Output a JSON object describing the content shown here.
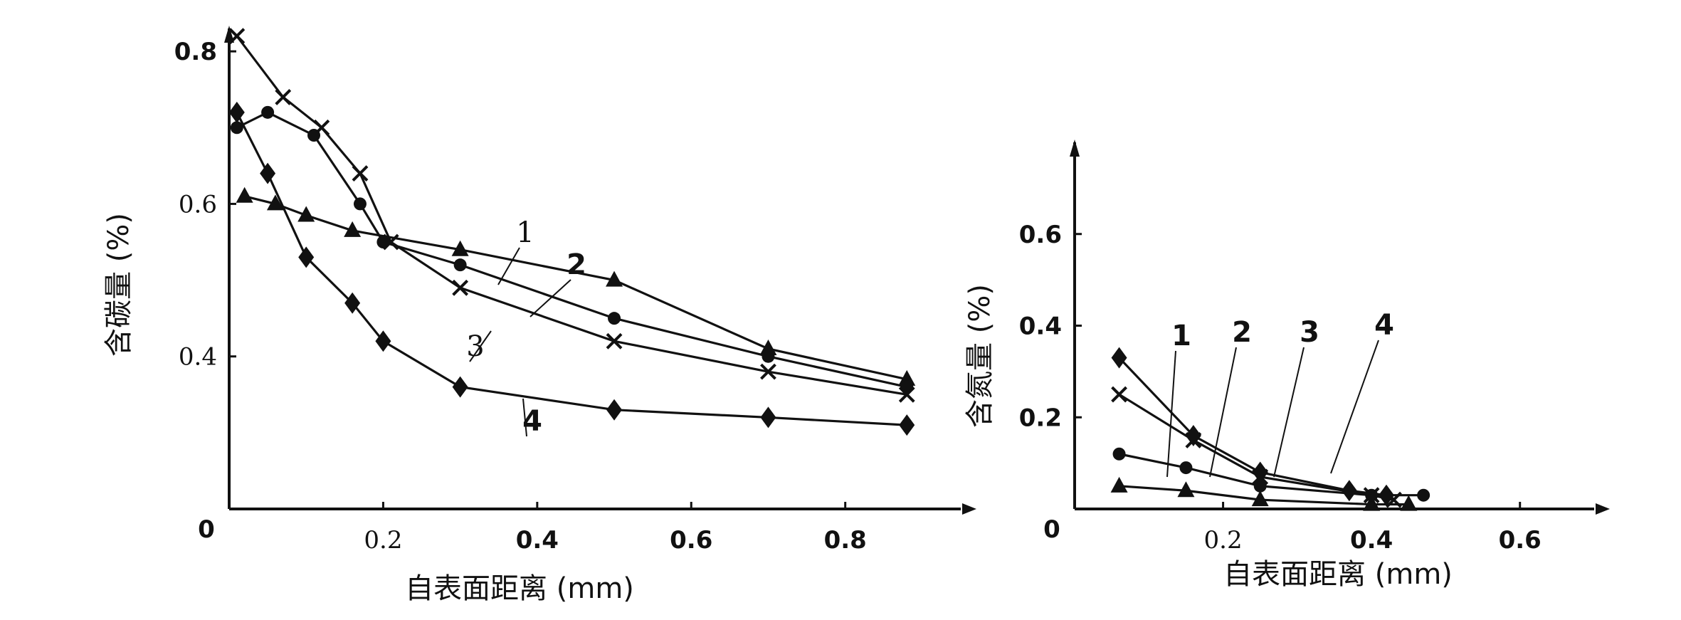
{
  "chart_data": [
    {
      "type": "line",
      "xlabel": "自表面距离 (mm)",
      "ylabel": "含碳量 (%)",
      "origin_label": "0",
      "xlim": [
        0,
        0.95
      ],
      "ylim": [
        0.2,
        0.83
      ],
      "x_ticks": [
        {
          "value": 0.2,
          "label": "0.2"
        },
        {
          "value": 0.4,
          "label": "0.4"
        },
        {
          "value": 0.6,
          "label": "0.6"
        },
        {
          "value": 0.8,
          "label": "0.8"
        }
      ],
      "y_ticks": [
        {
          "value": 0.4,
          "label": "0.4"
        },
        {
          "value": 0.6,
          "label": "0.6"
        },
        {
          "value": 0.8,
          "label": "0.8"
        }
      ],
      "series": [
        {
          "name": "1",
          "marker": "triangle",
          "x": [
            0.02,
            0.06,
            0.1,
            0.16,
            0.3,
            0.5,
            0.7,
            0.88
          ],
          "y": [
            0.61,
            0.6,
            0.585,
            0.565,
            0.54,
            0.5,
            0.41,
            0.37
          ]
        },
        {
          "name": "2",
          "marker": "circle",
          "x": [
            0.01,
            0.05,
            0.11,
            0.17,
            0.2,
            0.3,
            0.5,
            0.7,
            0.88
          ],
          "y": [
            0.7,
            0.72,
            0.69,
            0.6,
            0.55,
            0.52,
            0.45,
            0.4,
            0.36
          ]
        },
        {
          "name": "3",
          "marker": "x",
          "x": [
            0.01,
            0.07,
            0.12,
            0.17,
            0.21,
            0.3,
            0.5,
            0.7,
            0.88
          ],
          "y": [
            0.82,
            0.74,
            0.7,
            0.64,
            0.55,
            0.49,
            0.42,
            0.38,
            0.35
          ]
        },
        {
          "name": "4",
          "marker": "diamond",
          "x": [
            0.01,
            0.05,
            0.1,
            0.16,
            0.2,
            0.3,
            0.5,
            0.7,
            0.88
          ],
          "y": [
            0.72,
            0.64,
            0.53,
            0.47,
            0.42,
            0.36,
            0.33,
            0.32,
            0.31
          ]
        }
      ]
    },
    {
      "type": "line",
      "xlabel": "自表面距离 (mm)",
      "ylabel": "含氮量 (%)",
      "origin_label": "0",
      "xlim": [
        0,
        0.7
      ],
      "ylim": [
        0,
        0.8
      ],
      "x_ticks": [
        {
          "value": 0.2,
          "label": "0.2"
        },
        {
          "value": 0.4,
          "label": "0.4"
        },
        {
          "value": 0.6,
          "label": "0.6"
        }
      ],
      "y_ticks": [
        {
          "value": 0.2,
          "label": "0.2"
        },
        {
          "value": 0.4,
          "label": "0.4"
        },
        {
          "value": 0.6,
          "label": "0.6"
        }
      ],
      "series": [
        {
          "name": "1",
          "marker": "triangle",
          "x": [
            0.06,
            0.15,
            0.25,
            0.4,
            0.45
          ],
          "y": [
            0.05,
            0.04,
            0.02,
            0.01,
            0.01
          ]
        },
        {
          "name": "2",
          "marker": "circle",
          "x": [
            0.06,
            0.15,
            0.25,
            0.4,
            0.47
          ],
          "y": [
            0.12,
            0.09,
            0.05,
            0.03,
            0.03
          ]
        },
        {
          "name": "3",
          "marker": "x",
          "x": [
            0.06,
            0.16,
            0.25,
            0.4,
            0.43
          ],
          "y": [
            0.25,
            0.15,
            0.07,
            0.03,
            0.02
          ]
        },
        {
          "name": "4",
          "marker": "diamond",
          "x": [
            0.06,
            0.16,
            0.25,
            0.37,
            0.42
          ],
          "y": [
            0.33,
            0.16,
            0.08,
            0.04,
            0.03
          ]
        }
      ]
    }
  ]
}
